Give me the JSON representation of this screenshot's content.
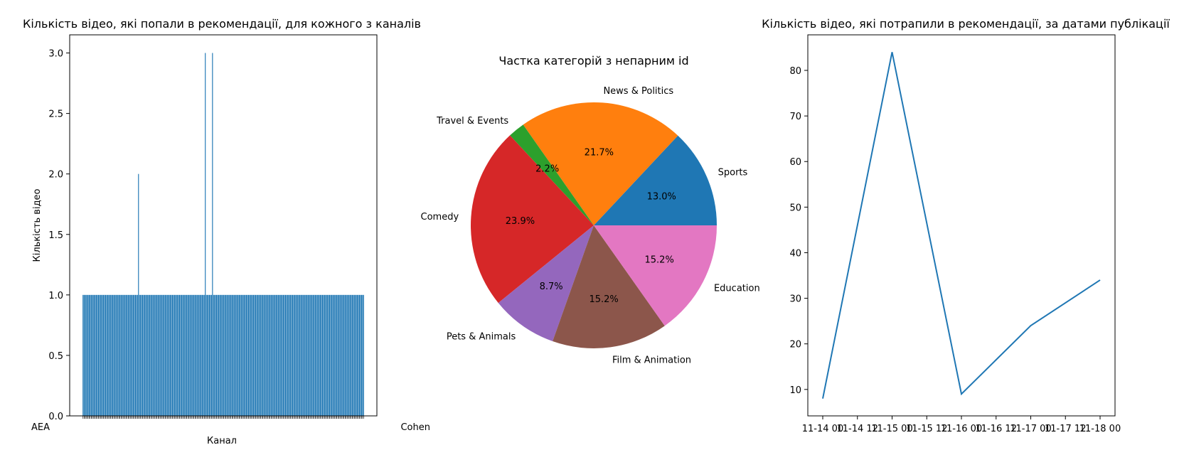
{
  "chart_data": [
    {
      "type": "bar",
      "title": "Кількість відео, які попали в рекомендації, для кожного з каналів",
      "xlabel": "Канал",
      "ylabel": "Кількість відео",
      "color": "#1f77b4",
      "ylim": [
        0,
        3.15
      ],
      "yticks": [
        0.0,
        0.5,
        1.0,
        1.5,
        2.0,
        2.5,
        3.0
      ],
      "ytick_labels": [
        "0.0",
        "0.5",
        "1.0",
        "1.5",
        "2.0",
        "2.5",
        "3.0"
      ],
      "visible_category_labels": [
        "AEA",
        "Cohen"
      ],
      "values": [
        1,
        1,
        1,
        1,
        1,
        1,
        1,
        1,
        1,
        1,
        1,
        1,
        1,
        1,
        1,
        1,
        1,
        1,
        1,
        1,
        1,
        1,
        1,
        1,
        1,
        1,
        1,
        1,
        1,
        1,
        1,
        1,
        1,
        1,
        1,
        1,
        1,
        1,
        1,
        1,
        1,
        1,
        1,
        1,
        1,
        1,
        1,
        1,
        1,
        1,
        1,
        1,
        1,
        1,
        2,
        1,
        1,
        1,
        1,
        1,
        1,
        1,
        1,
        1,
        1,
        1,
        1,
        1,
        1,
        1,
        1,
        1,
        1,
        1,
        1,
        1,
        1,
        1,
        1,
        1,
        1,
        1,
        1,
        1,
        1,
        1,
        1,
        1,
        1,
        1,
        1,
        1,
        1,
        1,
        1,
        1,
        1,
        1,
        1,
        1,
        1,
        1,
        1,
        1,
        1,
        1,
        1,
        1,
        1,
        1,
        1,
        1,
        1,
        1,
        1,
        1,
        1,
        1,
        1,
        3,
        1,
        1,
        1,
        1,
        1,
        1,
        3,
        1,
        1,
        1,
        1,
        1,
        1,
        1,
        1,
        1,
        1,
        1,
        1,
        1,
        1,
        1,
        1,
        1,
        1,
        1,
        1,
        1,
        1,
        1,
        1,
        1,
        1,
        1,
        1,
        1,
        1,
        1,
        1,
        1,
        1,
        1,
        1,
        1,
        1,
        1,
        1,
        1,
        1,
        1,
        1,
        1,
        1,
        1,
        1,
        1,
        1,
        1,
        1,
        1,
        1,
        1,
        1,
        1,
        1,
        1,
        1,
        1,
        1,
        1,
        1,
        1,
        1,
        1,
        1,
        1,
        1,
        1,
        1,
        1,
        1,
        1,
        1,
        1,
        1,
        1,
        1,
        1,
        1,
        1,
        1,
        1,
        1,
        1,
        1,
        1,
        1,
        1,
        1,
        1,
        1,
        1,
        1,
        1,
        1,
        1,
        1,
        1,
        1,
        1,
        1,
        1,
        1,
        1,
        1,
        1,
        1,
        1,
        1,
        1,
        1,
        1,
        1,
        1,
        1,
        1,
        1,
        1,
        1,
        1,
        1,
        1,
        1,
        1,
        1,
        1,
        1,
        1,
        1,
        1,
        1,
        1,
        1,
        1,
        1,
        1,
        1,
        1,
        1,
        1,
        1,
        1,
        1,
        1
      ]
    },
    {
      "type": "pie",
      "title": "Частка категорій з непарним id",
      "slices": [
        {
          "label": "Sports",
          "value": 13.0,
          "pct": "13.0%",
          "color": "#1f77b4"
        },
        {
          "label": "News & Politics",
          "value": 21.7,
          "pct": "21.7%",
          "color": "#ff7f0e"
        },
        {
          "label": "Travel & Events",
          "value": 2.2,
          "pct": "2.2%",
          "color": "#2ca02c"
        },
        {
          "label": "Comedy",
          "value": 23.9,
          "pct": "23.9%",
          "color": "#d62728"
        },
        {
          "label": "Pets & Animals",
          "value": 8.7,
          "pct": "8.7%",
          "color": "#9467bd"
        },
        {
          "label": "Film & Animation",
          "value": 15.2,
          "pct": "15.2%",
          "color": "#8c564b"
        },
        {
          "label": "Education",
          "value": 15.2,
          "pct": "15.2%",
          "color": "#e377c2"
        }
      ]
    },
    {
      "type": "line",
      "title": "Кількість відео, які потрапили в рекомендації, за датами публікації",
      "color": "#1f77b4",
      "x": [
        "11-14 00",
        "11-15 00",
        "11-16 00",
        "11-17 00",
        "11-18 00"
      ],
      "y": [
        8,
        84,
        9,
        24,
        34
      ],
      "xticks": [
        "11-14 00",
        "11-14 12",
        "11-15 00",
        "11-15 12",
        "11-16 00",
        "11-16 12",
        "11-17 00",
        "11-17 12",
        "11-18 00"
      ],
      "ylim": [
        4.2,
        87.8
      ],
      "yticks": [
        10,
        20,
        30,
        40,
        50,
        60,
        70,
        80
      ]
    }
  ]
}
